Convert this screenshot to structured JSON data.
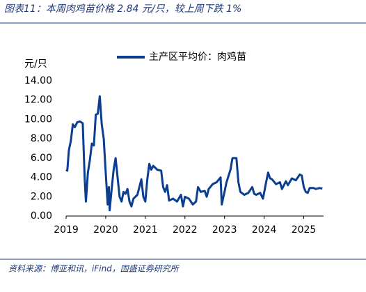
{
  "chart_data": {
    "type": "line",
    "title": "图表11：本周肉鸡苗价格 2.84 元/只，较上周下跌 1%",
    "y_label": "元/只",
    "source": "资料来源：博亚和讯，iFind，国盛证券研究所",
    "x": [
      2019.0,
      2019.03,
      2019.07,
      2019.12,
      2019.17,
      2019.22,
      2019.28,
      2019.35,
      2019.42,
      2019.47,
      2019.5,
      2019.55,
      2019.6,
      2019.65,
      2019.7,
      2019.75,
      2019.8,
      2019.85,
      2019.9,
      2019.95,
      2020.0,
      2020.05,
      2020.08,
      2020.1,
      2020.15,
      2020.2,
      2020.25,
      2020.3,
      2020.35,
      2020.4,
      2020.45,
      2020.5,
      2020.55,
      2020.6,
      2020.65,
      2020.7,
      2020.8,
      2020.9,
      2020.95,
      2021.0,
      2021.05,
      2021.1,
      2021.15,
      2021.2,
      2021.3,
      2021.4,
      2021.45,
      2021.5,
      2021.55,
      2021.6,
      2021.7,
      2021.8,
      2021.9,
      2021.95,
      2022.0,
      2022.1,
      2022.2,
      2022.28,
      2022.33,
      2022.4,
      2022.5,
      2022.55,
      2022.6,
      2022.7,
      2022.8,
      2022.9,
      2022.93,
      2023.0,
      2023.05,
      2023.15,
      2023.2,
      2023.3,
      2023.35,
      2023.4,
      2023.5,
      2023.6,
      2023.7,
      2023.75,
      2023.8,
      2023.9,
      2023.97,
      2024.05,
      2024.1,
      2024.15,
      2024.2,
      2024.3,
      2024.4,
      2024.45,
      2024.55,
      2024.6,
      2024.7,
      2024.8,
      2024.9,
      2024.95,
      2025.0,
      2025.05,
      2025.1,
      2025.15,
      2025.25,
      2025.3,
      2025.4,
      2025.47
    ],
    "series": [
      {
        "name": "主产区平均价：肉鸡苗",
        "color": "#0b3d91",
        "values": [
          4.8,
          4.7,
          6.8,
          7.8,
          9.5,
          9.2,
          9.7,
          9.8,
          9.6,
          3.8,
          1.5,
          4.5,
          5.8,
          7.5,
          7.3,
          10.5,
          10.6,
          12.4,
          9.5,
          8.0,
          4.5,
          1.2,
          3.0,
          0.6,
          2.8,
          4.8,
          6.0,
          4.0,
          2.0,
          1.5,
          2.5,
          2.3,
          2.8,
          1.5,
          1.0,
          1.8,
          2.2,
          3.8,
          2.0,
          1.5,
          3.8,
          5.4,
          4.8,
          5.2,
          4.8,
          4.7,
          3.0,
          2.5,
          3.2,
          1.6,
          1.8,
          1.5,
          2.2,
          1.0,
          2.0,
          1.8,
          1.2,
          1.5,
          3.0,
          2.5,
          2.6,
          2.0,
          2.8,
          3.3,
          3.5,
          4.0,
          1.2,
          2.5,
          3.5,
          4.8,
          6.0,
          6.0,
          3.5,
          2.5,
          2.2,
          2.4,
          3.0,
          2.3,
          2.2,
          2.4,
          1.8,
          3.5,
          4.5,
          3.9,
          3.8,
          3.3,
          3.5,
          2.8,
          3.6,
          3.2,
          3.9,
          3.7,
          4.3,
          4.2,
          3.0,
          2.5,
          2.4,
          2.9,
          2.9,
          2.8,
          2.9,
          2.84
        ]
      }
    ],
    "xlim": [
      2019,
      2025.5
    ],
    "xticks": [
      2019,
      2020,
      2021,
      2022,
      2023,
      2024,
      2025
    ],
    "ylim": [
      0,
      14
    ],
    "yticks": [
      {
        "value": 0,
        "label": "0.00"
      },
      {
        "value": 2,
        "label": "2.00"
      },
      {
        "value": 4,
        "label": "4.00"
      },
      {
        "value": 6,
        "label": "6.00"
      },
      {
        "value": 8,
        "label": "8.00"
      },
      {
        "value": 10,
        "label": "10.00"
      },
      {
        "value": 12,
        "label": "12.00"
      },
      {
        "value": 14,
        "label": "14.00"
      }
    ],
    "legend": "top"
  }
}
